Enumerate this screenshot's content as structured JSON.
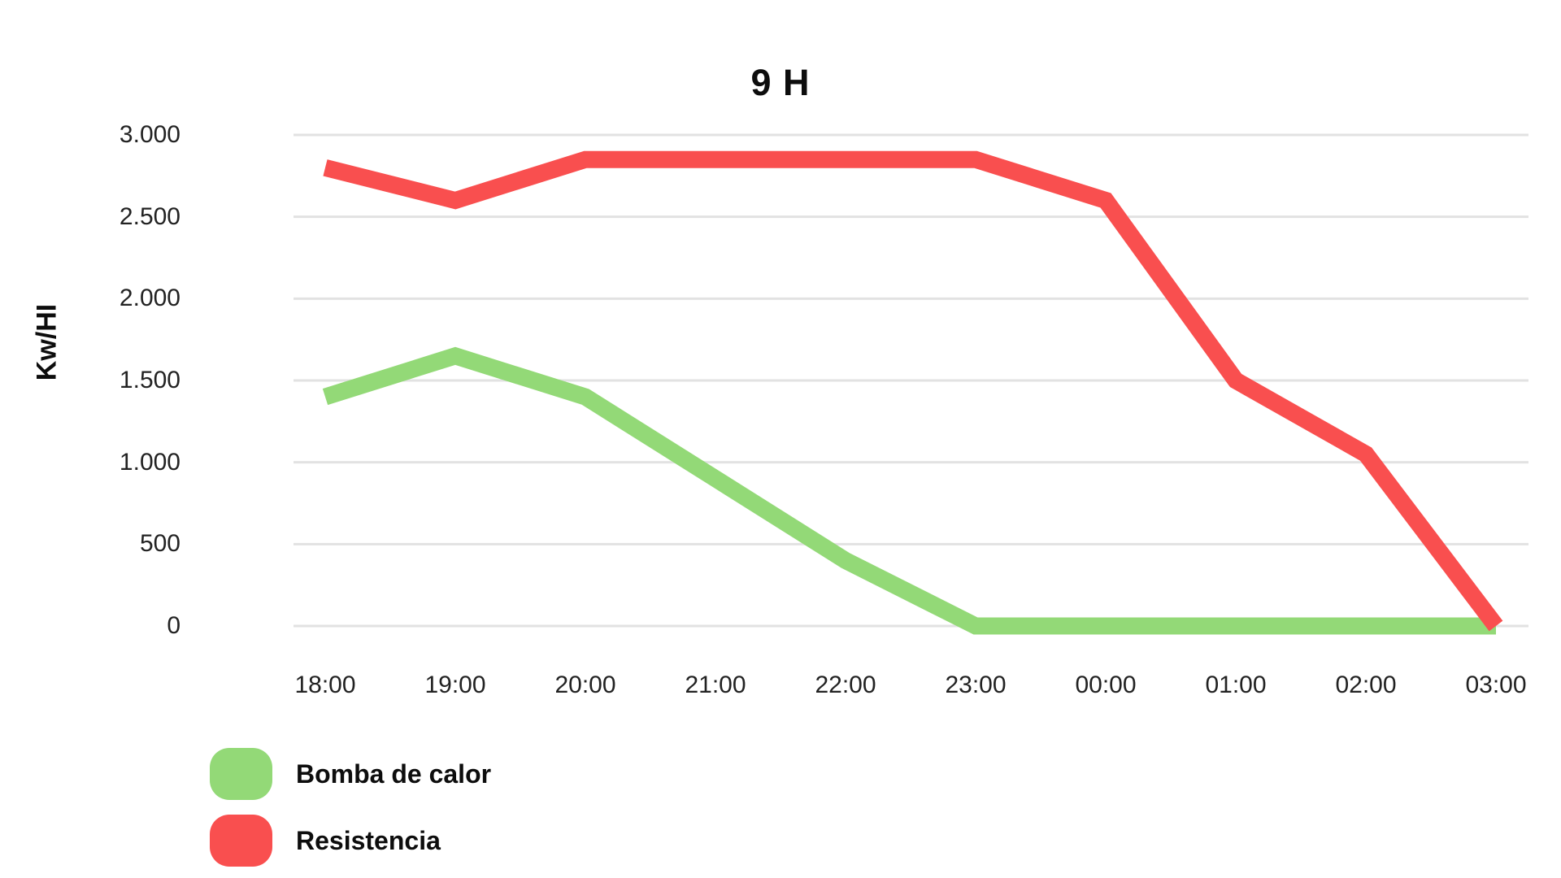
{
  "chart_data": {
    "type": "line",
    "title": "9 H",
    "ylabel": "Kw/HI",
    "xlabel": "",
    "categories": [
      "18:00",
      "19:00",
      "20:00",
      "21:00",
      "22:00",
      "23:00",
      "00:00",
      "01:00",
      "02:00",
      "03:00"
    ],
    "series": [
      {
        "name": "Bomba de calor",
        "color": "#93D977",
        "values": [
          1400,
          1650,
          1400,
          900,
          400,
          0,
          0,
          0,
          0,
          0
        ]
      },
      {
        "name": "Resistencia",
        "color": "#F94F4F",
        "values": [
          2800,
          2600,
          2850,
          2850,
          2850,
          2850,
          2600,
          1500,
          1050,
          0
        ]
      }
    ],
    "y_ticks": [
      {
        "value": 0,
        "label": "0"
      },
      {
        "value": 500,
        "label": "500"
      },
      {
        "value": 1000,
        "label": "1.000"
      },
      {
        "value": 1500,
        "label": "1.500"
      },
      {
        "value": 2000,
        "label": "2.000"
      },
      {
        "value": 2500,
        "label": "2.500"
      },
      {
        "value": 3000,
        "label": "3.000"
      }
    ],
    "ylim": [
      0,
      3000
    ],
    "grid": "horizontal",
    "gridline_color": "#E2E2E2",
    "background_color": "#FFFFFF",
    "text_color": "#222222",
    "legend_position": "bottom-left"
  }
}
